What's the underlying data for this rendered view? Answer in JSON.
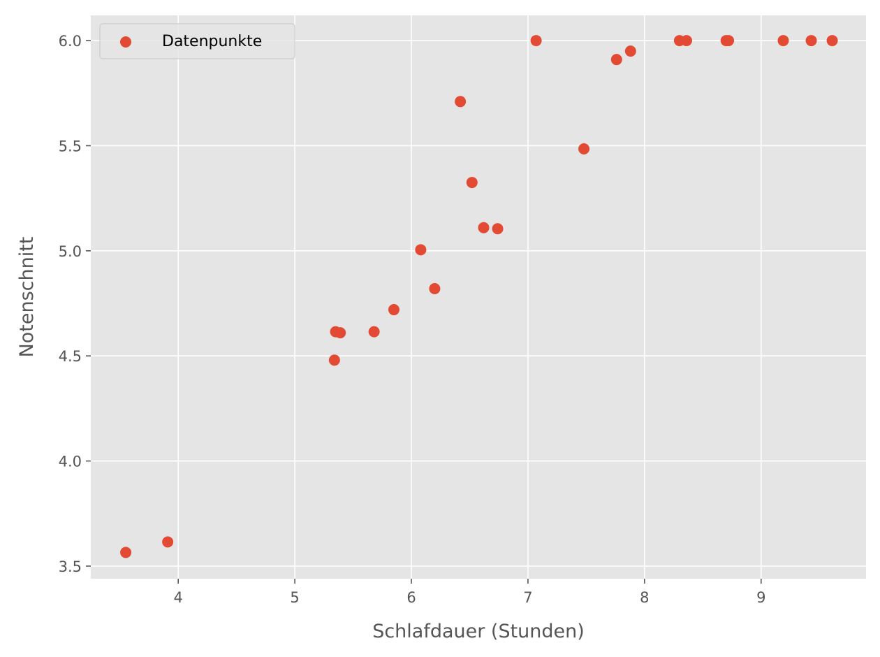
{
  "chart_data": {
    "type": "scatter",
    "xlabel": "Schlafdauer (Stunden)",
    "ylabel": "Notenschnitt",
    "xlim": [
      3.25,
      9.9
    ],
    "ylim": [
      3.44,
      6.12
    ],
    "x_ticks": [
      4,
      5,
      6,
      7,
      8,
      9
    ],
    "x_tick_labels": [
      "4",
      "5",
      "6",
      "7",
      "8",
      "9"
    ],
    "y_ticks": [
      3.5,
      4.0,
      4.5,
      5.0,
      5.5,
      6.0
    ],
    "y_tick_labels": [
      "3.5",
      "4.0",
      "4.5",
      "5.0",
      "5.5",
      "6.0"
    ],
    "grid": true,
    "legend_position": "top-left",
    "colors": {
      "point": "#E24A33",
      "plot_bg": "#E5E5E5",
      "grid": "#FFFFFF",
      "text": "#555555"
    },
    "series": [
      {
        "name": "Datenpunkte",
        "points": [
          {
            "x": 3.55,
            "y": 3.565
          },
          {
            "x": 3.91,
            "y": 3.615
          },
          {
            "x": 5.34,
            "y": 4.48
          },
          {
            "x": 5.35,
            "y": 4.615
          },
          {
            "x": 5.39,
            "y": 4.61
          },
          {
            "x": 5.68,
            "y": 4.615
          },
          {
            "x": 5.85,
            "y": 4.72
          },
          {
            "x": 6.08,
            "y": 5.005
          },
          {
            "x": 6.2,
            "y": 4.82
          },
          {
            "x": 6.42,
            "y": 5.71
          },
          {
            "x": 6.52,
            "y": 5.325
          },
          {
            "x": 6.62,
            "y": 5.11
          },
          {
            "x": 6.74,
            "y": 5.105
          },
          {
            "x": 7.07,
            "y": 6.0
          },
          {
            "x": 7.48,
            "y": 5.485
          },
          {
            "x": 7.76,
            "y": 5.91
          },
          {
            "x": 7.88,
            "y": 5.95
          },
          {
            "x": 8.3,
            "y": 6.0
          },
          {
            "x": 8.36,
            "y": 6.0
          },
          {
            "x": 8.7,
            "y": 6.0
          },
          {
            "x": 8.72,
            "y": 6.0
          },
          {
            "x": 9.19,
            "y": 6.0
          },
          {
            "x": 9.43,
            "y": 6.0
          },
          {
            "x": 9.61,
            "y": 6.0
          }
        ]
      }
    ]
  }
}
